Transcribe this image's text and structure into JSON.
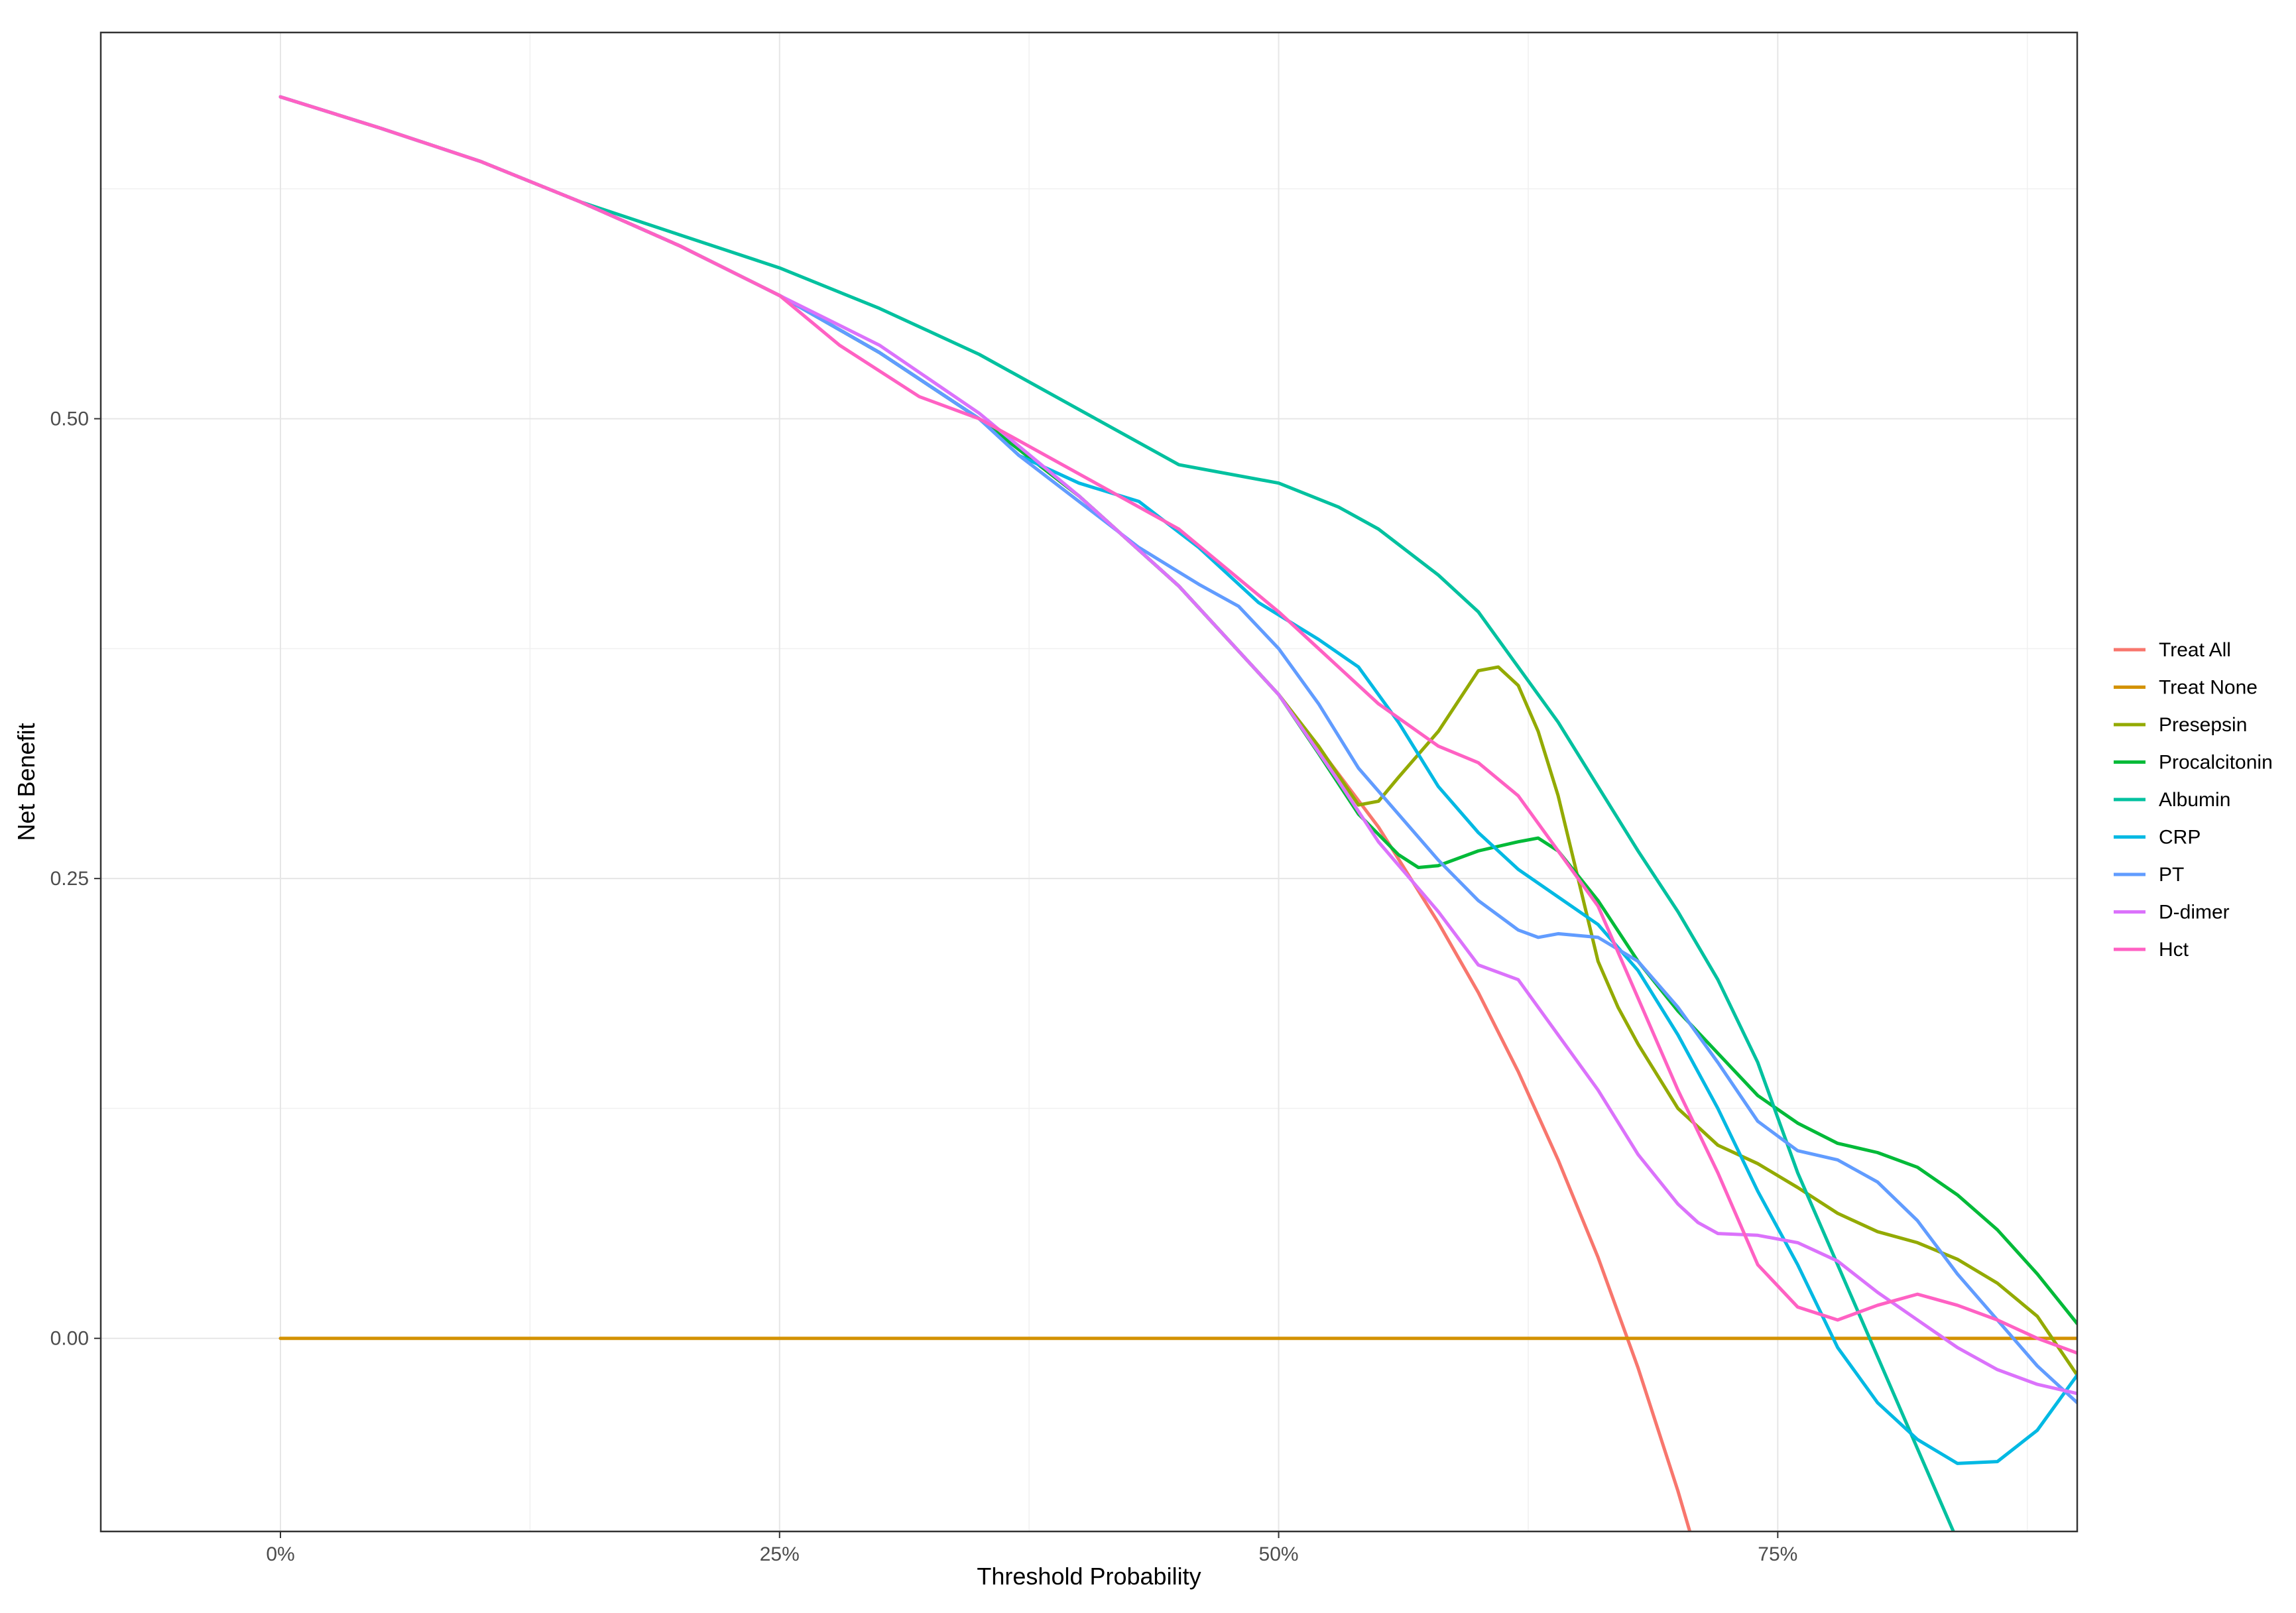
{
  "chart_data": {
    "type": "line",
    "title": "",
    "xlabel": "Threshold Probability",
    "ylabel": "Net Benefit",
    "xlim": [
      -0.09,
      0.9
    ],
    "ylim": [
      -0.105,
      0.71
    ],
    "x_ticks": [
      0,
      0.25,
      0.5,
      0.75
    ],
    "x_tick_labels": [
      "0%",
      "25%",
      "50%",
      "75%"
    ],
    "y_ticks": [
      0,
      0.25,
      0.5
    ],
    "y_tick_labels": [
      "0.00",
      "0.25",
      "0.50"
    ],
    "grid": true,
    "legend_position": "right",
    "series": [
      {
        "name": "Treat All",
        "color": "#F8766D",
        "x": [
          0,
          0.05,
          0.1,
          0.15,
          0.2,
          0.25,
          0.3,
          0.35,
          0.4,
          0.45,
          0.5,
          0.55,
          0.58,
          0.6,
          0.62,
          0.64,
          0.66,
          0.68,
          0.7,
          0.71
        ],
        "y": [
          0.675,
          0.658,
          0.64,
          0.618,
          0.594,
          0.567,
          0.536,
          0.5,
          0.458,
          0.409,
          0.35,
          0.278,
          0.226,
          0.188,
          0.145,
          0.097,
          0.044,
          -0.016,
          -0.083,
          -0.12
        ]
      },
      {
        "name": "Treat None",
        "color": "#D39200",
        "x": [
          0,
          0.9
        ],
        "y": [
          0,
          0
        ]
      },
      {
        "name": "Presepsin",
        "color": "#93AA00",
        "x": [
          0,
          0.05,
          0.1,
          0.15,
          0.2,
          0.25,
          0.3,
          0.35,
          0.4,
          0.45,
          0.5,
          0.52,
          0.54,
          0.55,
          0.56,
          0.58,
          0.6,
          0.61,
          0.62,
          0.63,
          0.64,
          0.65,
          0.66,
          0.67,
          0.68,
          0.7,
          0.72,
          0.74,
          0.76,
          0.78,
          0.8,
          0.82,
          0.84,
          0.86,
          0.88,
          0.9
        ],
        "y": [
          0.675,
          0.658,
          0.64,
          0.618,
          0.594,
          0.567,
          0.536,
          0.5,
          0.458,
          0.409,
          0.35,
          0.322,
          0.29,
          0.292,
          0.305,
          0.33,
          0.363,
          0.365,
          0.355,
          0.33,
          0.295,
          0.25,
          0.205,
          0.18,
          0.16,
          0.125,
          0.105,
          0.095,
          0.082,
          0.068,
          0.058,
          0.052,
          0.043,
          0.03,
          0.012,
          -0.02
        ]
      },
      {
        "name": "Procalcitonin",
        "color": "#00BA38",
        "x": [
          0,
          0.05,
          0.1,
          0.15,
          0.2,
          0.25,
          0.3,
          0.35,
          0.4,
          0.45,
          0.5,
          0.52,
          0.54,
          0.56,
          0.57,
          0.58,
          0.6,
          0.62,
          0.63,
          0.64,
          0.66,
          0.68,
          0.7,
          0.72,
          0.74,
          0.76,
          0.78,
          0.8,
          0.82,
          0.84,
          0.86,
          0.88,
          0.9
        ],
        "y": [
          0.675,
          0.658,
          0.64,
          0.618,
          0.594,
          0.567,
          0.536,
          0.5,
          0.458,
          0.409,
          0.35,
          0.318,
          0.285,
          0.263,
          0.256,
          0.257,
          0.265,
          0.27,
          0.272,
          0.265,
          0.238,
          0.205,
          0.178,
          0.155,
          0.132,
          0.117,
          0.106,
          0.101,
          0.093,
          0.078,
          0.059,
          0.035,
          0.008
        ]
      },
      {
        "name": "Albumin",
        "color": "#00C19F",
        "x": [
          0,
          0.05,
          0.1,
          0.15,
          0.2,
          0.25,
          0.3,
          0.35,
          0.4,
          0.45,
          0.5,
          0.53,
          0.55,
          0.58,
          0.6,
          0.62,
          0.64,
          0.66,
          0.68,
          0.7,
          0.72,
          0.74,
          0.76,
          0.78,
          0.8,
          0.82,
          0.84,
          0.86,
          0.88,
          0.9
        ],
        "y": [
          0.675,
          0.658,
          0.64,
          0.618,
          0.6,
          0.582,
          0.56,
          0.535,
          0.505,
          0.475,
          0.465,
          0.452,
          0.44,
          0.415,
          0.395,
          0.365,
          0.335,
          0.3,
          0.265,
          0.232,
          0.195,
          0.15,
          0.09,
          0.04,
          -0.01,
          -0.06,
          -0.11,
          -0.15,
          -0.17,
          -0.165
        ]
      },
      {
        "name": "CRP",
        "color": "#00B9E3",
        "x": [
          0,
          0.05,
          0.1,
          0.15,
          0.2,
          0.25,
          0.3,
          0.35,
          0.37,
          0.4,
          0.43,
          0.46,
          0.49,
          0.52,
          0.54,
          0.56,
          0.58,
          0.6,
          0.62,
          0.64,
          0.66,
          0.68,
          0.7,
          0.72,
          0.74,
          0.76,
          0.78,
          0.8,
          0.82,
          0.84,
          0.86,
          0.88,
          0.9
        ],
        "y": [
          0.675,
          0.658,
          0.64,
          0.618,
          0.594,
          0.567,
          0.536,
          0.5,
          0.48,
          0.465,
          0.455,
          0.43,
          0.4,
          0.38,
          0.365,
          0.335,
          0.3,
          0.275,
          0.255,
          0.24,
          0.225,
          0.2,
          0.165,
          0.125,
          0.08,
          0.04,
          -0.005,
          -0.035,
          -0.055,
          -0.068,
          -0.067,
          -0.05,
          -0.02
        ]
      },
      {
        "name": "PT",
        "color": "#619CFF",
        "x": [
          0,
          0.05,
          0.1,
          0.15,
          0.2,
          0.25,
          0.3,
          0.35,
          0.37,
          0.4,
          0.43,
          0.46,
          0.48,
          0.5,
          0.52,
          0.54,
          0.56,
          0.58,
          0.6,
          0.62,
          0.63,
          0.64,
          0.66,
          0.68,
          0.7,
          0.72,
          0.74,
          0.76,
          0.78,
          0.8,
          0.82,
          0.84,
          0.86,
          0.88,
          0.9
        ],
        "y": [
          0.675,
          0.658,
          0.64,
          0.618,
          0.594,
          0.567,
          0.536,
          0.5,
          0.48,
          0.455,
          0.43,
          0.41,
          0.398,
          0.375,
          0.345,
          0.31,
          0.285,
          0.26,
          0.238,
          0.222,
          0.218,
          0.22,
          0.218,
          0.205,
          0.18,
          0.15,
          0.118,
          0.102,
          0.097,
          0.085,
          0.064,
          0.035,
          0.01,
          -0.015,
          -0.035
        ]
      },
      {
        "name": "D-dimer",
        "color": "#DB72FB",
        "x": [
          0,
          0.05,
          0.1,
          0.15,
          0.2,
          0.25,
          0.3,
          0.35,
          0.4,
          0.45,
          0.5,
          0.53,
          0.55,
          0.58,
          0.6,
          0.62,
          0.64,
          0.66,
          0.68,
          0.7,
          0.71,
          0.72,
          0.74,
          0.76,
          0.78,
          0.8,
          0.82,
          0.84,
          0.86,
          0.88,
          0.9
        ],
        "y": [
          0.675,
          0.658,
          0.64,
          0.618,
          0.594,
          0.567,
          0.54,
          0.503,
          0.458,
          0.409,
          0.35,
          0.303,
          0.27,
          0.232,
          0.203,
          0.195,
          0.165,
          0.135,
          0.1,
          0.073,
          0.063,
          0.057,
          0.056,
          0.052,
          0.042,
          0.025,
          0.01,
          -0.005,
          -0.017,
          -0.025,
          -0.03
        ]
      },
      {
        "name": "Hct",
        "color": "#FF61C3",
        "x": [
          0,
          0.05,
          0.1,
          0.15,
          0.2,
          0.25,
          0.28,
          0.32,
          0.35,
          0.4,
          0.45,
          0.5,
          0.52,
          0.55,
          0.58,
          0.6,
          0.62,
          0.64,
          0.66,
          0.68,
          0.7,
          0.72,
          0.74,
          0.76,
          0.78,
          0.79,
          0.8,
          0.82,
          0.84,
          0.86,
          0.88,
          0.9
        ],
        "y": [
          0.675,
          0.658,
          0.64,
          0.618,
          0.594,
          0.567,
          0.54,
          0.512,
          0.5,
          0.47,
          0.44,
          0.395,
          0.375,
          0.345,
          0.322,
          0.313,
          0.295,
          0.265,
          0.235,
          0.185,
          0.135,
          0.09,
          0.04,
          0.017,
          0.01,
          0.014,
          0.018,
          0.024,
          0.018,
          0.01,
          0.0,
          -0.008
        ]
      }
    ]
  }
}
